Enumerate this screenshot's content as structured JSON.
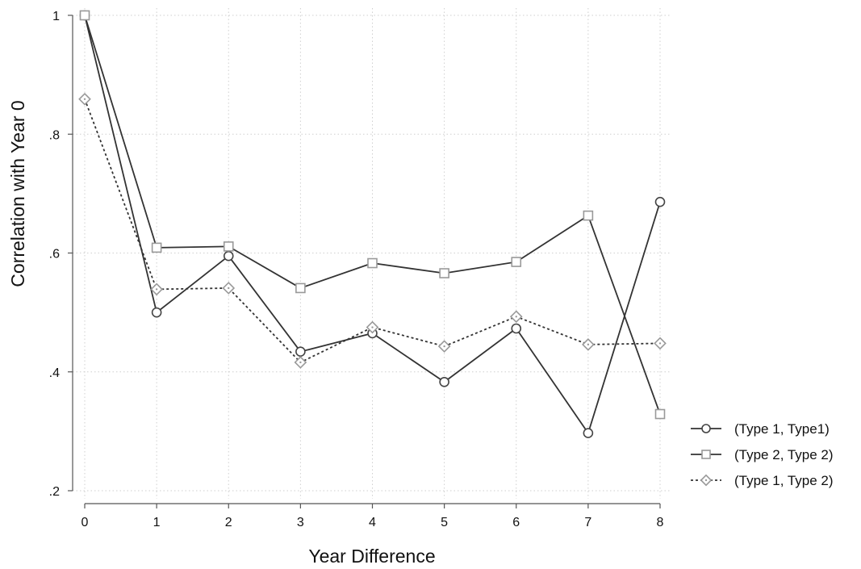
{
  "chart_data": {
    "type": "line",
    "xlabel": "Year Difference",
    "ylabel": "Correlation with Year 0",
    "x": [
      0,
      1,
      2,
      3,
      4,
      5,
      6,
      7,
      8
    ],
    "xticks": [
      "0",
      "1",
      "2",
      "3",
      "4",
      "5",
      "6",
      "7",
      "8"
    ],
    "yticks": [
      {
        "value": 1.0,
        "label": "1"
      },
      {
        "value": 0.8,
        "label": ".8"
      },
      {
        "value": 0.6,
        "label": ".6"
      },
      {
        "value": 0.4,
        "label": ".4"
      },
      {
        "value": 0.2,
        "label": ".2"
      }
    ],
    "xlim": [
      0,
      8
    ],
    "ylim": [
      0.2,
      1.0
    ],
    "grid": true,
    "legend_position": "bottom-right",
    "series": [
      {
        "name": "(Type 1, Type1)",
        "marker": "circle",
        "line_style": "solid",
        "line_color": "#333333",
        "marker_color": "#444444",
        "values": [
          1.0,
          0.5,
          0.595,
          0.434,
          0.465,
          0.383,
          0.473,
          0.297,
          0.686
        ]
      },
      {
        "name": "(Type 2, Type 2)",
        "marker": "square",
        "line_style": "solid",
        "line_color": "#333333",
        "marker_color": "#999999",
        "values": [
          1.0,
          0.609,
          0.611,
          0.541,
          0.583,
          0.566,
          0.585,
          0.663,
          0.329
        ]
      },
      {
        "name": "(Type 1, Type 2)",
        "marker": "diamond",
        "line_style": "dashed",
        "line_color": "#333333",
        "marker_color": "#999999",
        "values": [
          0.859,
          0.539,
          0.541,
          0.416,
          0.475,
          0.443,
          0.493,
          0.446,
          0.448
        ]
      }
    ]
  }
}
